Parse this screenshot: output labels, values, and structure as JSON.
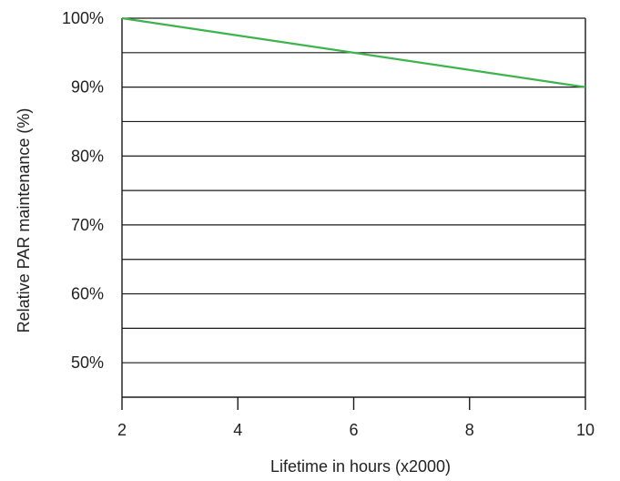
{
  "chart_data": {
    "type": "line",
    "title": "",
    "xlabel": "Lifetime in hours (x2000)",
    "ylabel": "Relative PAR maintenance (%)",
    "xlim": [
      2,
      10
    ],
    "ylim": [
      45,
      100
    ],
    "x_ticks": [
      2,
      4,
      6,
      8,
      10
    ],
    "x_tick_labels": [
      "2",
      "4",
      "6",
      "8",
      "10"
    ],
    "y_tick_values": [
      100,
      90,
      80,
      70,
      60,
      50
    ],
    "y_tick_labels": [
      "100%",
      "90%",
      "80%",
      "70%",
      "60%",
      "50%"
    ],
    "grid_y": [
      100,
      95,
      90,
      85,
      80,
      75,
      70,
      65,
      60,
      55,
      50
    ],
    "grid": true,
    "series": [
      {
        "color": "#3cb44b",
        "x": [
          2,
          10
        ],
        "y": [
          100,
          90
        ]
      }
    ]
  }
}
